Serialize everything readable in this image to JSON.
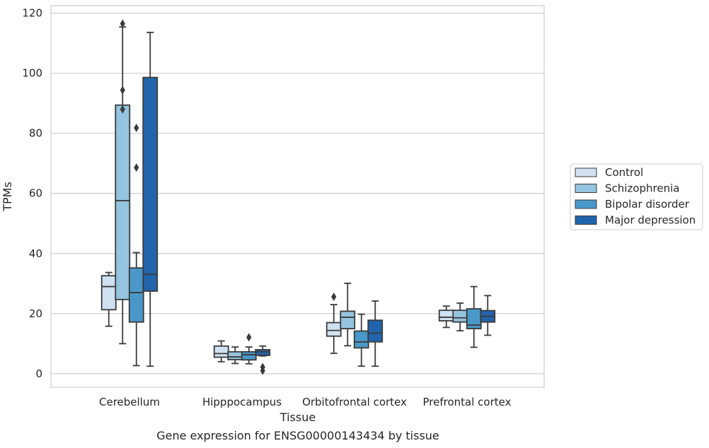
{
  "chart_data": {
    "type": "boxplot",
    "title": "Gene expression for ENSG00000143434 by tissue",
    "xlabel": "Tissue",
    "ylabel": "TPMs",
    "ylim": [
      -4.5,
      122.5
    ],
    "yticks": [
      0,
      20,
      40,
      60,
      80,
      100,
      120
    ],
    "grid": true,
    "legend_position": "right",
    "categories": [
      "Cerebellum",
      "Hipppocampus",
      "Orbitofrontal cortex",
      "Prefrontal cortex"
    ],
    "series": [
      {
        "name": "Control",
        "color": "#d0e1f2",
        "boxes": [
          {
            "whislo": 15.8,
            "q1": 21.3,
            "med": 29.0,
            "q3": 32.6,
            "whishi": 33.7,
            "fliers": []
          },
          {
            "whislo": 4.0,
            "q1": 5.5,
            "med": 6.7,
            "q3": 9.2,
            "whishi": 10.9,
            "fliers": []
          },
          {
            "whislo": 6.8,
            "q1": 12.5,
            "med": 14.4,
            "q3": 17.0,
            "whishi": 23.0,
            "fliers": [
              25.6
            ]
          },
          {
            "whislo": 15.4,
            "q1": 17.6,
            "med": 18.8,
            "q3": 21.1,
            "whishi": 22.5,
            "fliers": []
          }
        ]
      },
      {
        "name": "Schizophrenia",
        "color": "#94c4df",
        "boxes": [
          {
            "whislo": 10.0,
            "q1": 24.7,
            "med": 57.6,
            "q3": 89.4,
            "whishi": 115.4,
            "fliers": [
              88.0,
              94.4,
              116.5
            ]
          },
          {
            "whislo": 3.4,
            "q1": 4.7,
            "med": 5.6,
            "q3": 7.3,
            "whishi": 8.9,
            "fliers": []
          },
          {
            "whislo": 9.3,
            "q1": 15.0,
            "med": 18.8,
            "q3": 20.8,
            "whishi": 30.1,
            "fliers": []
          },
          {
            "whislo": 14.3,
            "q1": 17.2,
            "med": 18.6,
            "q3": 21.1,
            "whishi": 23.5,
            "fliers": []
          }
        ]
      },
      {
        "name": "Bipolar disorder",
        "color": "#4a98c9",
        "boxes": [
          {
            "whislo": 2.7,
            "q1": 17.2,
            "med": 27.0,
            "q3": 35.2,
            "whishi": 40.3,
            "fliers": [
              68.6,
              81.8
            ]
          },
          {
            "whislo": 3.3,
            "q1": 4.6,
            "med": 6.3,
            "q3": 7.3,
            "whishi": 8.9,
            "fliers": [
              12.1
            ]
          },
          {
            "whislo": 2.5,
            "q1": 8.6,
            "med": 10.6,
            "q3": 14.2,
            "whishi": 19.8,
            "fliers": []
          },
          {
            "whislo": 8.8,
            "q1": 15.0,
            "med": 16.2,
            "q3": 21.6,
            "whishi": 29.0,
            "fliers": []
          }
        ]
      },
      {
        "name": "Major depression",
        "color": "#2164ab",
        "boxes": [
          {
            "whislo": 2.5,
            "q1": 27.5,
            "med": 33.1,
            "q3": 98.6,
            "whishi": 113.6,
            "fliers": []
          },
          {
            "whislo": 5.9,
            "q1": 6.1,
            "med": 7.3,
            "q3": 8.0,
            "whishi": 9.2,
            "fliers": [
              1.0,
              2.2
            ]
          },
          {
            "whislo": 2.5,
            "q1": 10.6,
            "med": 13.5,
            "q3": 17.8,
            "whishi": 24.2,
            "fliers": []
          },
          {
            "whislo": 12.8,
            "q1": 17.2,
            "med": 19.1,
            "q3": 21.0,
            "whishi": 26.0,
            "fliers": []
          }
        ]
      }
    ]
  }
}
